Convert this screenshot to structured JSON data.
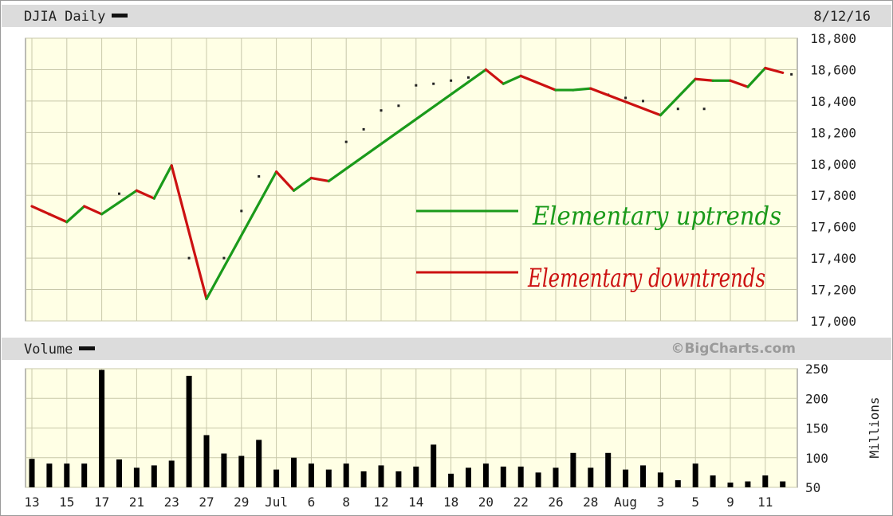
{
  "header": {
    "title": "DJIA Daily",
    "date": "8/12/16"
  },
  "volume_header": {
    "title": "Volume",
    "credit": "©BigCharts.com"
  },
  "colors": {
    "plot_bg": "#ffffe5",
    "grid": "#c8c8aa",
    "up": "#1a9a1a",
    "down": "#cc1111",
    "volume_bar": "#000000"
  },
  "annotations": {
    "up_label": "Elementary uptrends",
    "down_label": "Elementary downtrends"
  },
  "chart_data": [
    {
      "type": "line",
      "title": "DJIA Daily",
      "ylim": [
        17000,
        18800
      ],
      "yticks": [
        "17,000",
        "17,200",
        "17,400",
        "17,600",
        "17,800",
        "18,000",
        "18,200",
        "18,400",
        "18,600",
        "18,800"
      ],
      "ytick_values": [
        17000,
        17200,
        17400,
        17600,
        17800,
        18000,
        18200,
        18400,
        18600,
        18800
      ],
      "grid": true,
      "legend": "right",
      "series": [
        {
          "name": "Elementary uptrends",
          "color": "#1a9a1a"
        },
        {
          "name": "Elementary downtrends",
          "color": "#cc1111"
        }
      ],
      "trend_points": [
        {
          "d": 0,
          "v": 17730
        },
        {
          "d": 2,
          "v": 17630
        },
        {
          "d": 3,
          "v": 17730
        },
        {
          "d": 4,
          "v": 17680
        },
        {
          "d": 6,
          "v": 17830
        },
        {
          "d": 7,
          "v": 17780
        },
        {
          "d": 8,
          "v": 17990
        },
        {
          "d": 10,
          "v": 17140
        },
        {
          "d": 14,
          "v": 17950
        },
        {
          "d": 15,
          "v": 17830
        },
        {
          "d": 16,
          "v": 17910
        },
        {
          "d": 17,
          "v": 17890
        },
        {
          "d": 26,
          "v": 18600
        },
        {
          "d": 27,
          "v": 18510
        },
        {
          "d": 28,
          "v": 18560
        },
        {
          "d": 30,
          "v": 18470
        },
        {
          "d": 31,
          "v": 18470
        },
        {
          "d": 32,
          "v": 18480
        },
        {
          "d": 36,
          "v": 18310
        },
        {
          "d": 38,
          "v": 18540
        },
        {
          "d": 39,
          "v": 18530
        },
        {
          "d": 40,
          "v": 18530
        },
        {
          "d": 41,
          "v": 18490
        },
        {
          "d": 42,
          "v": 18610
        },
        {
          "d": 43,
          "v": 18580
        }
      ],
      "dots": [
        {
          "d": 1,
          "v": 17680
        },
        {
          "d": 5,
          "v": 17810
        },
        {
          "d": 9,
          "v": 17400
        },
        {
          "d": 11,
          "v": 17400
        },
        {
          "d": 12,
          "v": 17700
        },
        {
          "d": 13,
          "v": 17920
        },
        {
          "d": 18,
          "v": 18140
        },
        {
          "d": 19,
          "v": 18220
        },
        {
          "d": 20,
          "v": 18340
        },
        {
          "d": 21,
          "v": 18370
        },
        {
          "d": 22,
          "v": 18500
        },
        {
          "d": 23,
          "v": 18510
        },
        {
          "d": 24,
          "v": 18530
        },
        {
          "d": 25,
          "v": 18550
        },
        {
          "d": 33,
          "v": 18440
        },
        {
          "d": 34,
          "v": 18420
        },
        {
          "d": 35,
          "v": 18400
        },
        {
          "d": 37,
          "v": 18350
        },
        {
          "d": 38.5,
          "v": 18350
        },
        {
          "d": 43.5,
          "v": 18570
        }
      ]
    },
    {
      "type": "bar",
      "title": "Volume",
      "ylabel": "Millions",
      "ylim": [
        50,
        250
      ],
      "yticks": [
        "50",
        "100",
        "150",
        "200",
        "250"
      ],
      "ytick_values": [
        50,
        100,
        150,
        200,
        250
      ],
      "grid": true,
      "x_ticks": [
        {
          "d": 0,
          "label": "13"
        },
        {
          "d": 2,
          "label": "15"
        },
        {
          "d": 4,
          "label": "17"
        },
        {
          "d": 6,
          "label": "21"
        },
        {
          "d": 8,
          "label": "23"
        },
        {
          "d": 10,
          "label": "27"
        },
        {
          "d": 12,
          "label": "29"
        },
        {
          "d": 14,
          "label": "Jul"
        },
        {
          "d": 16,
          "label": "6"
        },
        {
          "d": 18,
          "label": "8"
        },
        {
          "d": 20,
          "label": "12"
        },
        {
          "d": 22,
          "label": "14"
        },
        {
          "d": 24,
          "label": "18"
        },
        {
          "d": 26,
          "label": "20"
        },
        {
          "d": 28,
          "label": "22"
        },
        {
          "d": 30,
          "label": "26"
        },
        {
          "d": 32,
          "label": "28"
        },
        {
          "d": 34,
          "label": "Aug"
        },
        {
          "d": 36,
          "label": "3"
        },
        {
          "d": 38,
          "label": "5"
        },
        {
          "d": 40,
          "label": "9"
        },
        {
          "d": 42,
          "label": "11"
        }
      ],
      "values": [
        98,
        90,
        90,
        90,
        248,
        97,
        83,
        87,
        95,
        238,
        138,
        107,
        103,
        130,
        80,
        100,
        90,
        80,
        90,
        77,
        87,
        77,
        85,
        122,
        73,
        83,
        90,
        85,
        85,
        75,
        83,
        108,
        83,
        108,
        80,
        87,
        75,
        62,
        90,
        70,
        58,
        60,
        70,
        60
      ]
    }
  ]
}
